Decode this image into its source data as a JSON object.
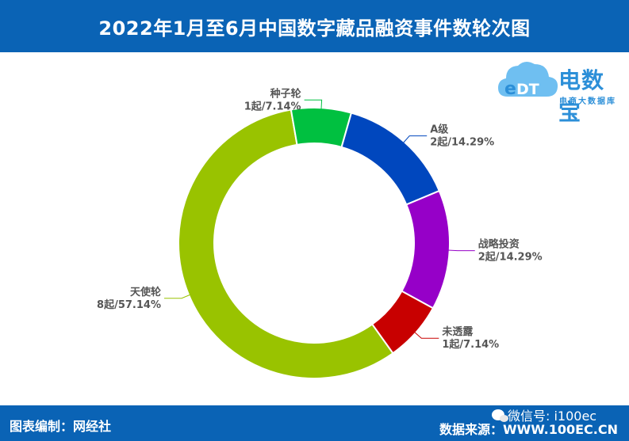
{
  "header": {
    "title": "2022年1月至6月中国数字藏品融资事件数轮次图"
  },
  "logo": {
    "icon": "cloud-edt-icon",
    "brand": "电数宝",
    "sub": "电商大数据库"
  },
  "footer": {
    "left": "图表编制：网经社",
    "wechat": "微信号: i100ec",
    "right": "数据来源：WWW.100EC.CN"
  },
  "colors": {
    "header_bg": "#0a63b5",
    "A级": "#0047be",
    "战略投资": "#9600c8",
    "未透露": "#c80000",
    "天使轮": "#99c300",
    "种子轮": "#00c040"
  },
  "chart_data": {
    "type": "pie",
    "variant": "donut",
    "title": "2022年1月至6月中国数字藏品融资事件数轮次图",
    "slices": [
      {
        "name": "A级",
        "count": 2,
        "percent": 14.29,
        "label": "A级",
        "value_label": "2起/14.29%",
        "color": "#0047be"
      },
      {
        "name": "战略投资",
        "count": 2,
        "percent": 14.29,
        "label": "战略投资",
        "value_label": "2起/14.29%",
        "color": "#9600c8"
      },
      {
        "name": "未透露",
        "count": 1,
        "percent": 7.14,
        "label": "未透露",
        "value_label": "1起/7.14%",
        "color": "#c80000"
      },
      {
        "name": "天使轮",
        "count": 8,
        "percent": 57.14,
        "label": "天使轮",
        "value_label": "8起/57.14%",
        "color": "#99c300"
      },
      {
        "name": "种子轮",
        "count": 1,
        "percent": 7.14,
        "label": "种子轮",
        "value_label": "1起/7.14%",
        "color": "#00c040"
      }
    ]
  }
}
